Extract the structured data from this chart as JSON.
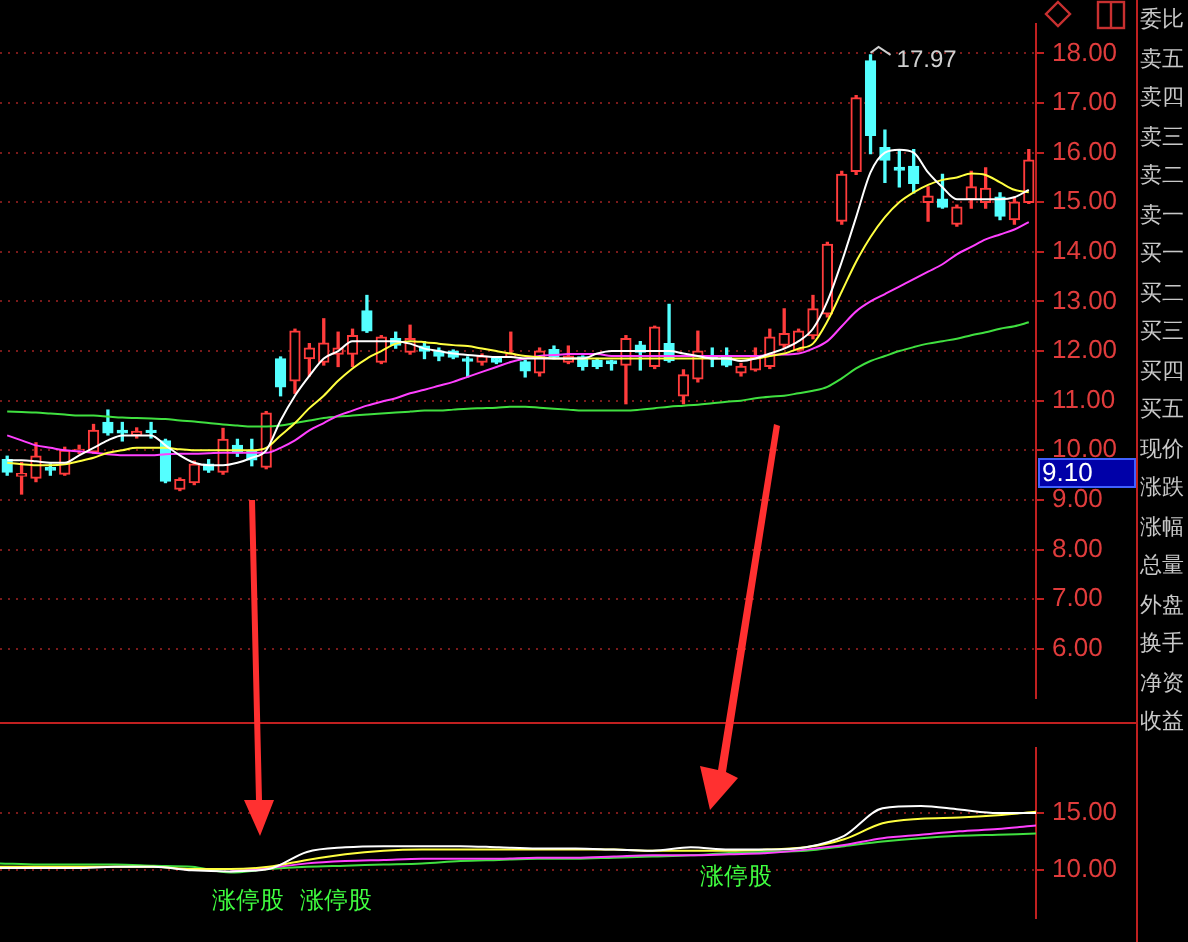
{
  "chart_data": [
    {
      "type": "candlestick",
      "tick_labels": "y",
      "grid": "y",
      "categories": [
        null,
        null,
        null,
        null,
        null,
        null,
        null,
        null,
        null,
        null,
        null,
        null,
        null,
        null,
        null,
        null,
        null,
        null,
        null,
        null,
        null,
        null,
        null,
        null,
        null,
        null,
        null,
        null,
        null,
        null,
        null,
        null,
        null,
        null,
        null,
        null,
        null,
        null,
        null,
        null,
        null,
        null,
        null,
        null,
        null,
        null,
        null,
        null,
        null,
        null,
        null,
        null,
        null,
        null,
        null,
        null,
        null,
        null,
        null,
        null,
        null,
        null,
        null,
        null,
        null,
        null,
        null,
        null,
        null,
        null,
        null,
        null
      ],
      "ohlc": [
        [
          9.81,
          9.88,
          9.5,
          9.56
        ],
        [
          9.48,
          9.75,
          9.12,
          9.53
        ],
        [
          9.44,
          10.15,
          9.37,
          9.88
        ],
        [
          9.65,
          9.72,
          9.5,
          9.6
        ],
        [
          9.52,
          10.06,
          9.5,
          10.0
        ],
        [
          9.98,
          10.1,
          9.94,
          10.02
        ],
        [
          9.97,
          10.52,
          9.94,
          10.4
        ],
        [
          10.56,
          10.81,
          10.31,
          10.35
        ],
        [
          10.4,
          10.56,
          10.19,
          10.35
        ],
        [
          10.3,
          10.45,
          10.25,
          10.38
        ],
        [
          10.4,
          10.56,
          10.25,
          10.36
        ],
        [
          10.19,
          10.22,
          9.35,
          9.38
        ],
        [
          9.22,
          9.44,
          9.19,
          9.41
        ],
        [
          9.35,
          9.78,
          9.31,
          9.72
        ],
        [
          9.72,
          9.81,
          9.56,
          9.6
        ],
        [
          9.56,
          10.44,
          9.52,
          10.22
        ],
        [
          10.1,
          10.22,
          9.88,
          9.95
        ],
        [
          10.0,
          10.22,
          9.69,
          9.81
        ],
        [
          9.66,
          10.78,
          9.63,
          10.75
        ],
        [
          11.84,
          11.88,
          11.1,
          11.28
        ],
        [
          11.4,
          12.44,
          11.15,
          12.4
        ],
        [
          11.85,
          12.15,
          11.5,
          12.06
        ],
        [
          11.78,
          12.65,
          11.72,
          12.16
        ],
        [
          11.94,
          12.38,
          11.69,
          12.06
        ],
        [
          11.94,
          12.44,
          11.69,
          12.31
        ],
        [
          12.81,
          13.12,
          12.38,
          12.41
        ],
        [
          11.78,
          12.31,
          11.75,
          12.28
        ],
        [
          12.25,
          12.38,
          12.06,
          12.12
        ],
        [
          11.98,
          12.52,
          11.94,
          12.25
        ],
        [
          12.1,
          12.19,
          11.85,
          12.0
        ],
        [
          12.0,
          12.06,
          11.81,
          11.9
        ],
        [
          12.0,
          12.02,
          11.85,
          11.88
        ],
        [
          11.83,
          11.88,
          11.48,
          11.8
        ],
        [
          11.78,
          11.94,
          11.72,
          11.9
        ],
        [
          11.85,
          11.88,
          11.75,
          11.78
        ],
        [
          11.9,
          12.38,
          11.88,
          11.94
        ],
        [
          11.78,
          11.81,
          11.48,
          11.6
        ],
        [
          11.56,
          12.06,
          11.5,
          12.0
        ],
        [
          12.03,
          12.1,
          11.85,
          11.88
        ],
        [
          11.78,
          12.1,
          11.75,
          11.9
        ],
        [
          11.88,
          11.9,
          11.62,
          11.69
        ],
        [
          11.81,
          11.85,
          11.65,
          11.69
        ],
        [
          11.8,
          11.81,
          11.62,
          11.75
        ],
        [
          11.72,
          12.31,
          10.94,
          12.25
        ],
        [
          12.12,
          12.19,
          11.62,
          11.98
        ],
        [
          11.69,
          12.5,
          11.65,
          12.48
        ],
        [
          12.15,
          12.94,
          11.78,
          11.81
        ],
        [
          11.1,
          11.62,
          10.94,
          11.52
        ],
        [
          11.44,
          12.4,
          11.38,
          12.0
        ],
        [
          11.9,
          12.06,
          11.69,
          11.85
        ],
        [
          11.88,
          12.06,
          11.69,
          11.72
        ],
        [
          11.56,
          11.75,
          11.5,
          11.69
        ],
        [
          11.62,
          12.06,
          11.6,
          11.88
        ],
        [
          11.69,
          12.44,
          11.65,
          12.28
        ],
        [
          12.12,
          12.85,
          12.06,
          12.35
        ],
        [
          12.02,
          12.44,
          12.0,
          12.4
        ],
        [
          12.31,
          13.12,
          12.25,
          12.85
        ],
        [
          12.75,
          14.19,
          12.69,
          14.15
        ],
        [
          14.62,
          15.62,
          14.56,
          15.56
        ],
        [
          15.62,
          17.15,
          15.56,
          17.1
        ],
        [
          17.85,
          17.97,
          15.98,
          16.35
        ],
        [
          16.1,
          16.45,
          15.4,
          15.85
        ],
        [
          15.7,
          16.06,
          15.31,
          15.65
        ],
        [
          15.72,
          16.06,
          15.19,
          15.38
        ],
        [
          15.0,
          15.31,
          14.62,
          15.12
        ],
        [
          15.06,
          15.56,
          14.88,
          14.9
        ],
        [
          14.56,
          14.94,
          14.52,
          14.9
        ],
        [
          15.06,
          15.62,
          14.88,
          15.31
        ],
        [
          15.0,
          15.69,
          14.88,
          15.28
        ],
        [
          15.1,
          15.19,
          14.65,
          14.72
        ],
        [
          14.65,
          15.1,
          14.56,
          15.0
        ],
        [
          15.0,
          16.06,
          14.98,
          15.85
        ]
      ],
      "colors": [
        "#54ffff",
        "#ff3c3c",
        "#ff3c3c",
        "#54ffff",
        "#ff3c3c",
        "#ff3c3c",
        "#ff3c3c",
        "#54ffff",
        "#54ffff",
        "#ff3c3c",
        "#54ffff",
        "#54ffff",
        "#ff3c3c",
        "#ff3c3c",
        "#54ffff",
        "#ff3c3c",
        "#54ffff",
        "#54ffff",
        "#ff3c3c",
        "#54ffff",
        "#ff3c3c",
        "#ff3c3c",
        "#ff3c3c",
        "#ff3c3c",
        "#ff3c3c",
        "#54ffff",
        "#ff3c3c",
        "#54ffff",
        "#ff3c3c",
        "#54ffff",
        "#54ffff",
        "#54ffff",
        "#54ffff",
        "#ff3c3c",
        "#54ffff",
        "#ff3c3c",
        "#54ffff",
        "#ff3c3c",
        "#54ffff",
        "#ff3c3c",
        "#54ffff",
        "#54ffff",
        "#54ffff",
        "#ff3c3c",
        "#54ffff",
        "#ff3c3c",
        "#54ffff",
        "#ff3c3c",
        "#ff3c3c",
        "#54ffff",
        "#54ffff",
        "#ff3c3c",
        "#ff3c3c",
        "#ff3c3c",
        "#ff3c3c",
        "#ff3c3c",
        "#ff3c3c",
        "#ff3c3c",
        "#ff3c3c",
        "#ff3c3c",
        "#54ffff",
        "#54ffff",
        "#54ffff",
        "#54ffff",
        "#ff3c3c",
        "#54ffff",
        "#ff3c3c",
        "#ff3c3c",
        "#ff3c3c",
        "#54ffff",
        "#ff3c3c",
        "#ff3c3c"
      ],
      "series": [
        {
          "type": "line",
          "color": "#ffffff",
          "values": [
            9.8,
            9.8,
            9.78,
            9.75,
            9.75,
            9.9,
            10.05,
            10.2,
            10.3,
            10.3,
            10.3,
            10.1,
            9.9,
            9.75,
            9.7,
            9.7,
            9.75,
            9.85,
            10.0,
            10.6,
            11.1,
            11.5,
            11.85,
            12.0,
            12.2,
            12.2,
            12.2,
            12.2,
            12.15,
            12.05,
            12.0,
            11.95,
            11.92,
            11.9,
            11.88,
            11.88,
            11.85,
            11.85,
            11.85,
            11.85,
            11.85,
            11.95,
            12.0,
            12.0,
            12.0,
            12.0,
            12.0,
            11.95,
            11.9,
            11.85,
            11.85,
            11.8,
            11.85,
            11.95,
            12.05,
            12.2,
            12.45,
            13.0,
            13.8,
            14.7,
            15.6,
            16.0,
            16.06,
            16.0,
            15.6,
            15.3,
            15.06,
            15.06,
            15.06,
            15.06,
            15.1,
            15.25
          ]
        },
        {
          "type": "line",
          "color": "#ffff40",
          "values": [
            9.75,
            9.72,
            9.7,
            9.7,
            9.72,
            9.78,
            9.85,
            9.95,
            10.0,
            10.05,
            10.05,
            10.05,
            10.02,
            10.0,
            10.0,
            10.0,
            10.0,
            10.0,
            10.05,
            10.3,
            10.55,
            10.85,
            11.1,
            11.4,
            11.65,
            11.85,
            12.0,
            12.15,
            12.2,
            12.18,
            12.15,
            12.12,
            12.1,
            12.05,
            12.0,
            11.95,
            11.9,
            11.88,
            11.85,
            11.85,
            11.85,
            11.85,
            11.85,
            11.85,
            11.85,
            11.85,
            11.85,
            11.85,
            11.85,
            11.85,
            11.85,
            11.85,
            11.85,
            11.9,
            11.95,
            12.05,
            12.15,
            12.6,
            13.2,
            13.8,
            14.3,
            14.7,
            15.0,
            15.2,
            15.35,
            15.45,
            15.5,
            15.58,
            15.55,
            15.4,
            15.25,
            15.2
          ]
        },
        {
          "type": "line",
          "color": "#ff40ff",
          "values": [
            10.3,
            10.2,
            10.1,
            10.05,
            10.0,
            9.98,
            9.95,
            9.92,
            9.9,
            9.9,
            9.9,
            9.92,
            9.93,
            9.93,
            9.94,
            9.95,
            9.95,
            9.95,
            9.95,
            10.05,
            10.2,
            10.4,
            10.55,
            10.7,
            10.8,
            10.9,
            10.98,
            11.05,
            11.15,
            11.22,
            11.3,
            11.38,
            11.48,
            11.58,
            11.68,
            11.78,
            11.85,
            11.9,
            11.92,
            11.94,
            11.94,
            11.94,
            11.9,
            11.9,
            11.9,
            11.9,
            11.9,
            11.9,
            11.9,
            11.9,
            11.9,
            11.9,
            11.9,
            11.92,
            11.93,
            11.95,
            12.05,
            12.2,
            12.5,
            12.8,
            13.0,
            13.15,
            13.3,
            13.45,
            13.6,
            13.75,
            13.95,
            14.1,
            14.25,
            14.35,
            14.45,
            14.6
          ]
        },
        {
          "type": "line",
          "color": "#40e040",
          "values": [
            10.78,
            10.77,
            10.76,
            10.74,
            10.72,
            10.7,
            10.7,
            10.68,
            10.66,
            10.65,
            10.64,
            10.63,
            10.6,
            10.58,
            10.55,
            10.52,
            10.5,
            10.48,
            10.48,
            10.5,
            10.55,
            10.6,
            10.65,
            10.68,
            10.7,
            10.72,
            10.74,
            10.76,
            10.78,
            10.8,
            10.8,
            10.82,
            10.84,
            10.85,
            10.86,
            10.88,
            10.88,
            10.86,
            10.84,
            10.82,
            10.8,
            10.8,
            10.8,
            10.8,
            10.82,
            10.85,
            10.88,
            10.9,
            10.92,
            10.95,
            10.98,
            11.0,
            11.05,
            11.08,
            11.1,
            11.15,
            11.2,
            11.28,
            11.45,
            11.65,
            11.8,
            11.9,
            12.0,
            12.08,
            12.15,
            12.2,
            12.25,
            12.32,
            12.38,
            12.45,
            12.5,
            12.58
          ]
        }
      ],
      "ylim": [
        5.0,
        18.6
      ],
      "yticks": [
        {
          "value": 6,
          "label": "6.00"
        },
        {
          "value": 7,
          "label": "7.00"
        },
        {
          "value": 8,
          "label": "8.00"
        },
        {
          "value": 9,
          "label": "9.00"
        },
        {
          "value": 10,
          "label": "10.00"
        },
        {
          "value": 11,
          "label": "11.00"
        },
        {
          "value": 12,
          "label": "12.00"
        },
        {
          "value": 13,
          "label": "13.00"
        },
        {
          "value": 14,
          "label": "14.00"
        },
        {
          "value": 15,
          "label": "15.00"
        },
        {
          "value": 16,
          "label": "16.00"
        },
        {
          "value": 17,
          "label": "17.00"
        },
        {
          "value": 18,
          "label": "18.00"
        }
      ],
      "annotations": [
        "17.97",
        "9.10",
        "委比",
        "卖五",
        "卖四",
        "卖三",
        "卖二",
        "卖一",
        "买一",
        "买二",
        "买三",
        "买四",
        "买五",
        "现价",
        "涨跌",
        "涨幅",
        "总量",
        "外盘",
        "换手",
        "净资",
        "收益"
      ]
    },
    {
      "type": "line",
      "tick_labels": "y",
      "grid": "y",
      "categories": [
        null,
        null,
        null,
        null,
        null,
        null,
        null,
        null,
        null,
        null,
        null,
        null,
        null,
        null,
        null,
        null,
        null,
        null,
        null,
        null,
        null,
        null,
        null,
        null,
        null,
        null,
        null,
        null
      ],
      "series": [
        {
          "color": "#ffffff",
          "values": [
            10.2,
            10.2,
            10.2,
            10.3,
            10.3,
            10.0,
            9.9,
            10.1,
            11.6,
            12.0,
            12.1,
            12.1,
            12.1,
            12.0,
            11.9,
            11.9,
            11.8,
            11.7,
            12.0,
            11.8,
            11.8,
            12.0,
            13.0,
            15.4,
            15.6,
            15.3,
            15.0,
            15.0
          ]
        },
        {
          "color": "#ffff40",
          "values": [
            10.3,
            10.3,
            10.3,
            10.3,
            10.3,
            10.1,
            10.1,
            10.3,
            10.9,
            11.4,
            11.7,
            11.8,
            11.8,
            11.8,
            11.8,
            11.8,
            11.8,
            11.7,
            11.7,
            11.7,
            11.8,
            12.0,
            12.7,
            14.1,
            14.5,
            14.6,
            14.8,
            15.1
          ]
        },
        {
          "color": "#ff40ff",
          "values": [
            null,
            null,
            null,
            null,
            null,
            null,
            9.9,
            10.2,
            10.6,
            10.8,
            10.9,
            11.0,
            11.0,
            11.0,
            11.1,
            11.1,
            11.2,
            11.3,
            11.3,
            11.4,
            11.5,
            11.8,
            12.2,
            12.8,
            13.1,
            13.4,
            13.6,
            13.9
          ]
        },
        {
          "color": "#40e040",
          "values": [
            10.6,
            10.5,
            10.5,
            10.5,
            10.4,
            10.3,
            9.8,
            10.1,
            10.3,
            10.4,
            10.5,
            10.6,
            10.8,
            10.9,
            11.0,
            11.0,
            11.1,
            11.2,
            11.3,
            11.5,
            11.6,
            11.7,
            12.1,
            12.5,
            12.8,
            13.0,
            13.1,
            13.2
          ]
        }
      ],
      "ylim": [
        5.8,
        20.7
      ],
      "yticks": [
        {
          "value": 10,
          "label": "10.00"
        },
        {
          "value": 15,
          "label": "15.00"
        }
      ],
      "annotations": [
        "涨停股",
        "涨停股",
        "涨停股"
      ]
    }
  ]
}
